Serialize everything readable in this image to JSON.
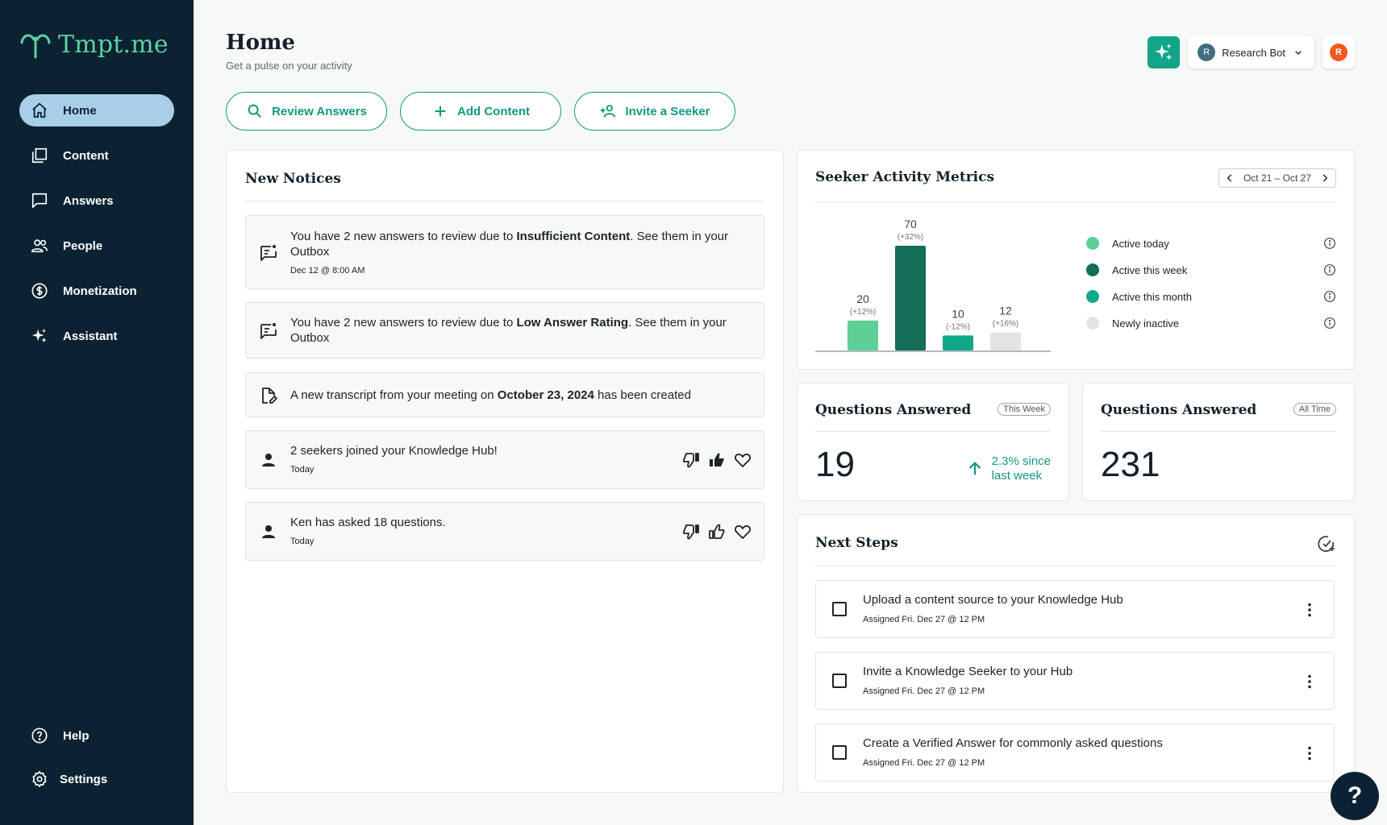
{
  "app": {
    "logo_text": "Tmpt.me"
  },
  "sidebar": {
    "items": [
      {
        "label": "Home",
        "icon": "home-icon"
      },
      {
        "label": "Content",
        "icon": "content-icon"
      },
      {
        "label": "Answers",
        "icon": "answers-icon"
      },
      {
        "label": "People",
        "icon": "people-icon"
      },
      {
        "label": "Monetization",
        "icon": "dollar-icon"
      },
      {
        "label": "Assistant",
        "icon": "sparkle-icon"
      }
    ],
    "bottom": [
      {
        "label": "Help",
        "icon": "help-icon"
      },
      {
        "label": "Settings",
        "icon": "gear-icon"
      }
    ]
  },
  "header": {
    "title": "Home",
    "subtitle": "Get a pulse on your activity",
    "bot_initial": "R",
    "bot_name": "Research Bot",
    "user_initial": "R"
  },
  "actions": {
    "review": "Review Answers",
    "add": "Add Content",
    "invite": "Invite a Seeker"
  },
  "notices": {
    "title": "New Notices",
    "items": [
      {
        "pre": "You have 2 new answers to review due to ",
        "bold": "Insufficient Content",
        "post": ". See them in your Outbox",
        "date": "Dec 12 @ 8:00 AM"
      },
      {
        "pre": "You have 2 new answers to review due to ",
        "bold": "Low Answer Rating",
        "post": ". See them in your Outbox"
      },
      {
        "pre": "A new transcript from your meeting on ",
        "bold": "October 23, 2024",
        "post": " has been created"
      },
      {
        "text": "2 seekers joined your Knowledge Hub!",
        "date": "Today"
      },
      {
        "text": "Ken has asked 18 questions.",
        "date": "Today"
      }
    ]
  },
  "metrics": {
    "title": "Seeker Activity Metrics",
    "date_range": "Oct 21 – Oct 27",
    "legend": [
      {
        "label": "Active today",
        "color": "#5fcf97"
      },
      {
        "label": "Active this week",
        "color": "#136d57"
      },
      {
        "label": "Active this month",
        "color": "#0fa889"
      },
      {
        "label": "Newly inactive",
        "color": "#e4e4e4"
      }
    ]
  },
  "chart_data": {
    "type": "bar",
    "categories": [
      "Active today",
      "Active this week",
      "Active this month",
      "Newly inactive"
    ],
    "values": [
      20,
      70,
      10,
      12
    ],
    "changes": [
      "(+12%)",
      "(+32%)",
      "(-12%)",
      "(+16%)"
    ],
    "colors": [
      "#5fcf97",
      "#136d57",
      "#0fa889",
      "#e4e4e4"
    ]
  },
  "questions_week": {
    "title": "Questions Answered",
    "badge": "This Week",
    "value": "19",
    "change_line1": "2.3% since",
    "change_line2": "last week"
  },
  "questions_all": {
    "title": "Questions Answered",
    "badge": "All Time",
    "value": "231"
  },
  "next_steps": {
    "title": "Next Steps",
    "items": [
      {
        "text": "Upload a content source to your Knowledge Hub",
        "date": "Assigned Fri. Dec 27 @ 12 PM"
      },
      {
        "text": "Invite a Knowledge Seeker to your Hub",
        "date": "Assigned Fri. Dec 27 @ 12 PM"
      },
      {
        "text": "Create a Verified Answer for commonly asked questions",
        "date": "Assigned Fri. Dec 27 @ 12 PM"
      }
    ]
  },
  "help_fab": "?"
}
